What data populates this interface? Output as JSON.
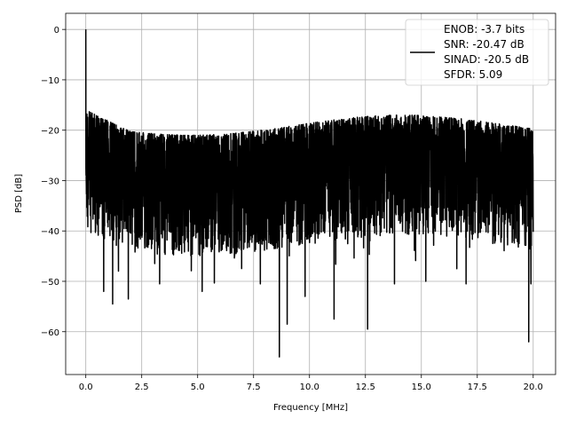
{
  "chart_data": {
    "type": "line",
    "xlabel": "Frequency [MHz]",
    "ylabel": "PSD [dB]",
    "xlim": [
      -0.9,
      21.0
    ],
    "ylim": [
      -68.5,
      3.2
    ],
    "xticks": [
      0.0,
      2.5,
      5.0,
      7.5,
      10.0,
      12.5,
      15.0,
      17.5,
      20.0
    ],
    "xtick_labels": [
      "0.0",
      "2.5",
      "5.0",
      "7.5",
      "10.0",
      "12.5",
      "15.0",
      "17.5",
      "20.0"
    ],
    "yticks": [
      0,
      -10,
      -20,
      -30,
      -40,
      -50,
      -60
    ],
    "ytick_labels": [
      "0",
      "−10",
      "−20",
      "−30",
      "−40",
      "−50",
      "−60"
    ],
    "grid": true,
    "legend_position": "top-right",
    "legend_lines": [
      "ENOB: -3.7 bits",
      "SNR: -20.47 dB",
      "SINAD: -20.5 dB",
      "SFDR: 5.09"
    ],
    "series": [
      {
        "color": "#000000",
        "x_range": [
          0.0,
          20.0
        ],
        "points": 4000,
        "peak": {
          "x": 0.0,
          "y": 0.0
        },
        "noise_upper_envelope": [
          -14,
          -17
        ],
        "noise_typical_range": [
          -40,
          -17
        ],
        "deep_nulls": [
          {
            "x": 0.8,
            "y": -52
          },
          {
            "x": 1.2,
            "y": -54.5
          },
          {
            "x": 1.9,
            "y": -53.5
          },
          {
            "x": 3.3,
            "y": -50.5
          },
          {
            "x": 5.2,
            "y": -52
          },
          {
            "x": 7.8,
            "y": -50.5
          },
          {
            "x": 8.65,
            "y": -65
          },
          {
            "x": 9.0,
            "y": -58.5
          },
          {
            "x": 9.8,
            "y": -53
          },
          {
            "x": 11.1,
            "y": -57.5
          },
          {
            "x": 12.6,
            "y": -59.5
          },
          {
            "x": 13.8,
            "y": -50.5
          },
          {
            "x": 15.2,
            "y": -50
          },
          {
            "x": 17.0,
            "y": -50.5
          },
          {
            "x": 19.8,
            "y": -62
          },
          {
            "x": 19.9,
            "y": -50.5
          }
        ]
      }
    ]
  }
}
